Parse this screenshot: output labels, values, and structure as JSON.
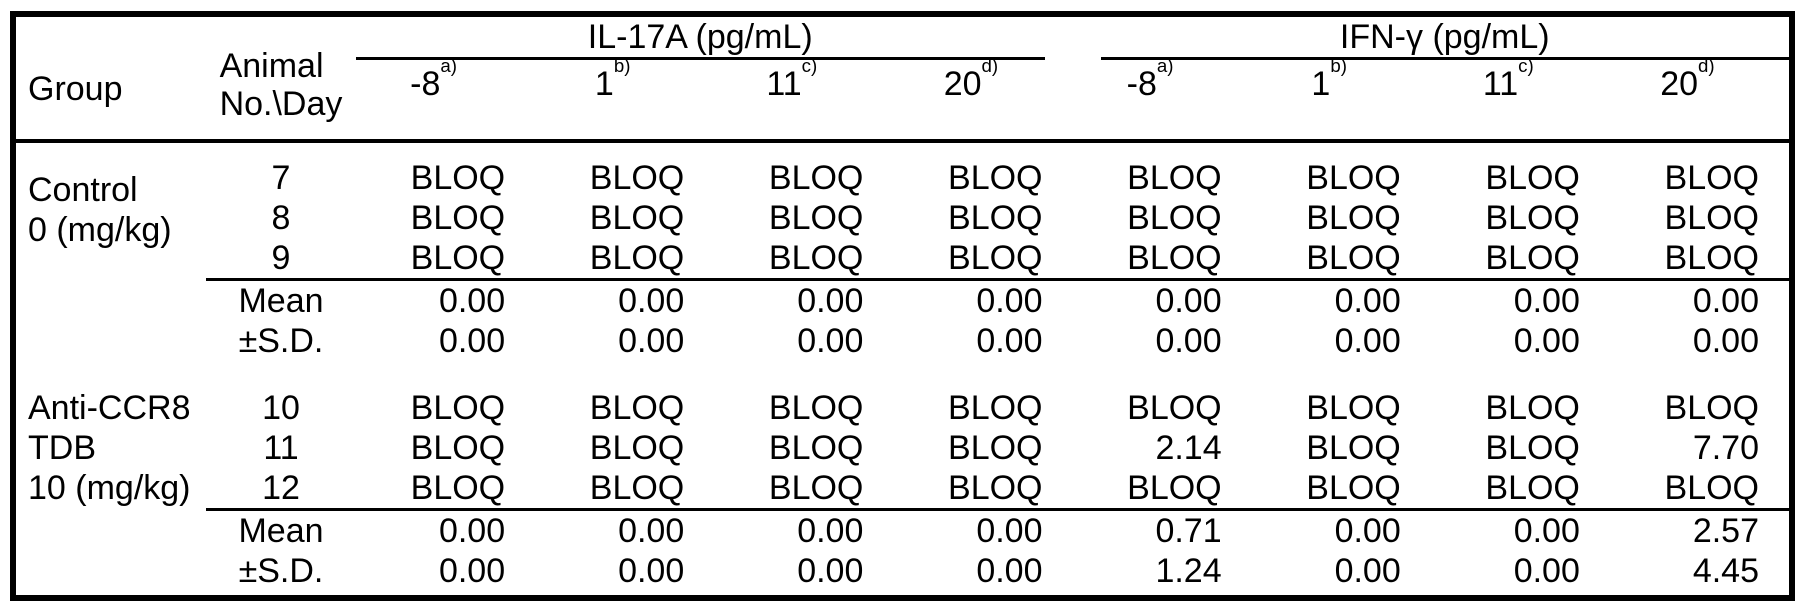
{
  "table": {
    "header": {
      "group_label": "Group",
      "animal_day_line1": "Animal",
      "animal_day_line2": "No.\\Day",
      "spanners": [
        {
          "label": "IL-17A (pg/mL)"
        },
        {
          "label": "IFN-γ (pg/mL)"
        }
      ],
      "days": [
        {
          "day": "-8",
          "note": "a)"
        },
        {
          "day": "1",
          "note": "b)"
        },
        {
          "day": "11",
          "note": "c)"
        },
        {
          "day": "20",
          "note": "d)"
        },
        {
          "day": "-8",
          "note": "a)"
        },
        {
          "day": "1",
          "note": "b)"
        },
        {
          "day": "11",
          "note": "c)"
        },
        {
          "day": "20",
          "note": "d)"
        }
      ]
    },
    "groups": [
      {
        "label_lines": [
          "Control",
          "0 (mg/kg)"
        ],
        "animals": [
          {
            "id": "7",
            "values": [
              "BLOQ",
              "BLOQ",
              "BLOQ",
              "BLOQ",
              "BLOQ",
              "BLOQ",
              "BLOQ",
              "BLOQ"
            ]
          },
          {
            "id": "8",
            "values": [
              "BLOQ",
              "BLOQ",
              "BLOQ",
              "BLOQ",
              "BLOQ",
              "BLOQ",
              "BLOQ",
              "BLOQ"
            ]
          },
          {
            "id": "9",
            "values": [
              "BLOQ",
              "BLOQ",
              "BLOQ",
              "BLOQ",
              "BLOQ",
              "BLOQ",
              "BLOQ",
              "BLOQ"
            ]
          }
        ],
        "mean": {
          "label": "Mean",
          "values": [
            "0.00",
            "0.00",
            "0.00",
            "0.00",
            "0.00",
            "0.00",
            "0.00",
            "0.00"
          ]
        },
        "sd": {
          "label": "±S.D.",
          "values": [
            "0.00",
            "0.00",
            "0.00",
            "0.00",
            "0.00",
            "0.00",
            "0.00",
            "0.00"
          ]
        }
      },
      {
        "label_lines": [
          "Anti-CCR8",
          "TDB",
          "10 (mg/kg)"
        ],
        "animals": [
          {
            "id": "10",
            "values": [
              "BLOQ",
              "BLOQ",
              "BLOQ",
              "BLOQ",
              "BLOQ",
              "BLOQ",
              "BLOQ",
              "BLOQ"
            ]
          },
          {
            "id": "11",
            "values": [
              "BLOQ",
              "BLOQ",
              "BLOQ",
              "BLOQ",
              "2.14",
              "BLOQ",
              "BLOQ",
              "7.70"
            ]
          },
          {
            "id": "12",
            "values": [
              "BLOQ",
              "BLOQ",
              "BLOQ",
              "BLOQ",
              "BLOQ",
              "BLOQ",
              "BLOQ",
              "BLOQ"
            ]
          }
        ],
        "mean": {
          "label": "Mean",
          "values": [
            "0.00",
            "0.00",
            "0.00",
            "0.00",
            "0.71",
            "0.00",
            "0.00",
            "2.57"
          ]
        },
        "sd": {
          "label": "±S.D.",
          "values": [
            "0.00",
            "0.00",
            "0.00",
            "0.00",
            "1.24",
            "0.00",
            "0.00",
            "4.45"
          ]
        }
      }
    ]
  },
  "colors": {
    "text": "#000000",
    "background": "#ffffff",
    "border": "#000000"
  }
}
